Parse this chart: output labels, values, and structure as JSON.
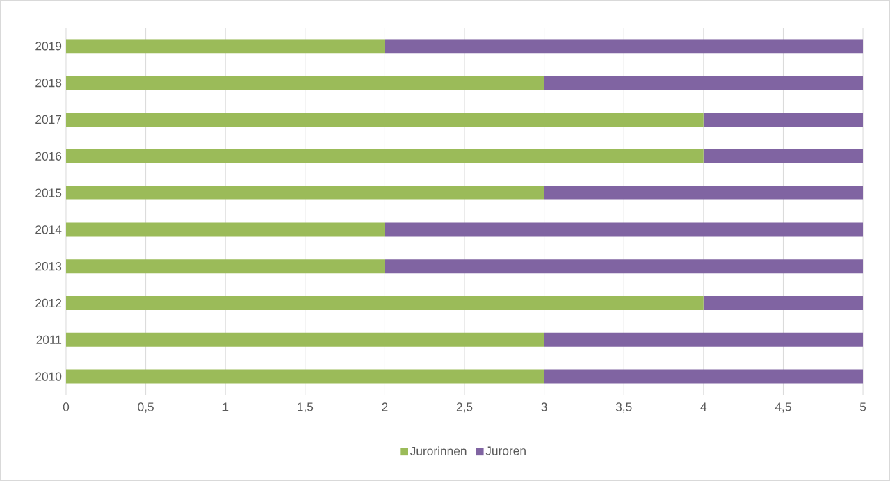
{
  "chart_data": {
    "type": "bar",
    "orientation": "horizontal",
    "stacked": true,
    "categories": [
      "2019",
      "2018",
      "2017",
      "2016",
      "2015",
      "2014",
      "2013",
      "2012",
      "2011",
      "2010"
    ],
    "series": [
      {
        "name": "Jurorinnen",
        "color": "#9bbb59",
        "values": [
          2,
          3,
          4,
          4,
          3,
          2,
          2,
          4,
          3,
          3
        ]
      },
      {
        "name": "Juroren",
        "color": "#8064a2",
        "values": [
          3,
          2,
          1,
          1,
          2,
          3,
          3,
          1,
          2,
          2
        ]
      }
    ],
    "xlim": [
      0,
      5
    ],
    "xticks": [
      0,
      {
        "value": 0.5,
        "label": "0,5"
      },
      1,
      {
        "value": 1.5,
        "label": "1,5"
      },
      2,
      {
        "value": 2.5,
        "label": "2,5"
      },
      3,
      {
        "value": 3.5,
        "label": "3,5"
      },
      4,
      {
        "value": 4.5,
        "label": "4,5"
      },
      5
    ],
    "grid": "x",
    "legend": "bottom"
  }
}
